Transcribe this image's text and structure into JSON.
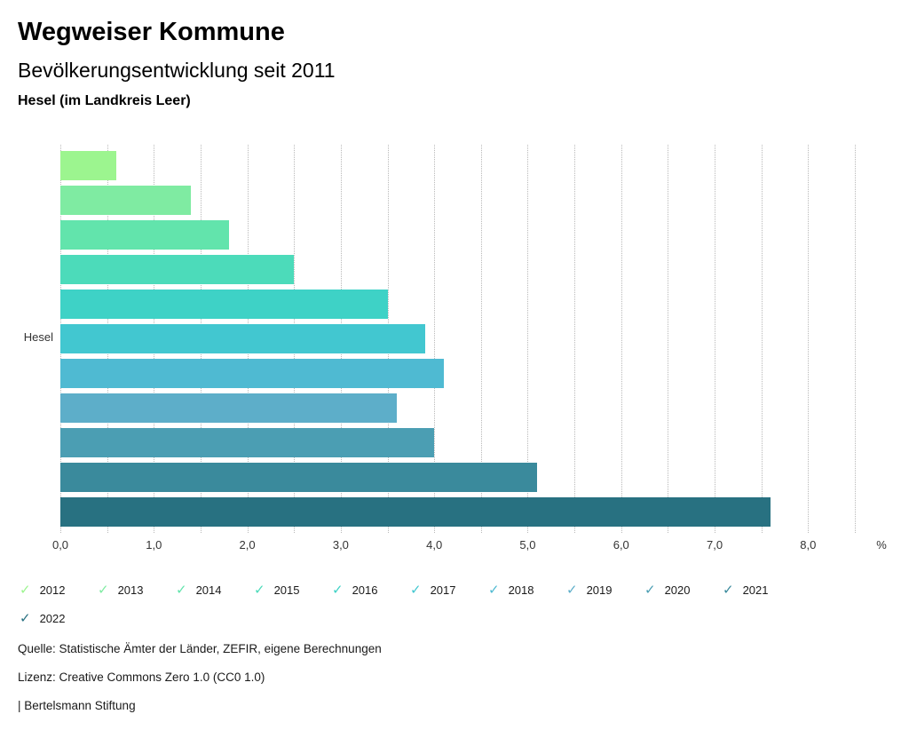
{
  "header": {
    "title": "Wegweiser Kommune",
    "subtitle": "Bevölkerungsentwicklung seit 2011",
    "location": "Hesel (im Landkreis Leer)"
  },
  "chart_data": {
    "type": "bar",
    "orientation": "horizontal",
    "title": "Bevölkerungsentwicklung seit 2011",
    "category_label": "Hesel",
    "unit_label": "%",
    "xlim": [
      0,
      8.5
    ],
    "gridline_step": 0.5,
    "grid": true,
    "legend_position": "bottom",
    "x_ticks": [
      {
        "value": 0,
        "label": "0,0"
      },
      {
        "value": 1,
        "label": "1,0"
      },
      {
        "value": 2,
        "label": "2,0"
      },
      {
        "value": 3,
        "label": "3,0"
      },
      {
        "value": 4,
        "label": "4,0"
      },
      {
        "value": 5,
        "label": "5,0"
      },
      {
        "value": 6,
        "label": "6,0"
      },
      {
        "value": 7,
        "label": "7,0"
      },
      {
        "value": 8,
        "label": "8,0"
      }
    ],
    "series": [
      {
        "name": "2012",
        "value": 0.6,
        "color": "#9cf58f"
      },
      {
        "name": "2013",
        "value": 1.4,
        "color": "#7feba2"
      },
      {
        "name": "2014",
        "value": 1.8,
        "color": "#62e4ac"
      },
      {
        "name": "2015",
        "value": 2.5,
        "color": "#4cdbba"
      },
      {
        "name": "2016",
        "value": 3.5,
        "color": "#3ed2c6"
      },
      {
        "name": "2017",
        "value": 3.9,
        "color": "#42c7d0"
      },
      {
        "name": "2018",
        "value": 4.1,
        "color": "#4fbad2"
      },
      {
        "name": "2019",
        "value": 3.6,
        "color": "#5daec9"
      },
      {
        "name": "2020",
        "value": 4.0,
        "color": "#4b9eb3"
      },
      {
        "name": "2021",
        "value": 5.1,
        "color": "#3a8a9c"
      },
      {
        "name": "2022",
        "value": 7.6,
        "color": "#287181"
      }
    ]
  },
  "legend": {
    "check_glyph": "✓"
  },
  "footer": {
    "source": "Quelle: Statistische Ämter der Länder, ZEFIR, eigene Berechnungen",
    "license": "Lizenz: Creative Commons Zero 1.0 (CC0 1.0)",
    "attribution": "| Bertelsmann Stiftung"
  }
}
